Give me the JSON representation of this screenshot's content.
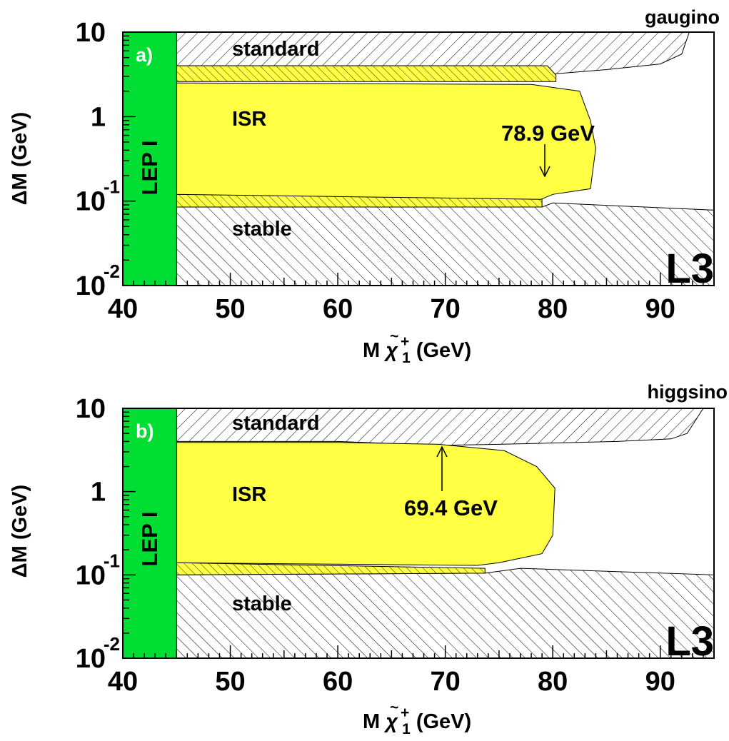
{
  "chart_data": [
    {
      "type": "area",
      "panel_label": "a)",
      "corner_label": "gaugino",
      "experiment_label": "L3",
      "xlabel": {
        "main": "M",
        "symbol": "χ",
        "tilde": "~",
        "sup": "+",
        "sub": "1",
        "unit": " (GeV)"
      },
      "ylabel": "ΔM (GeV)",
      "xlim": [
        40,
        95
      ],
      "ylim": [
        0.01,
        10
      ],
      "y_scale": "log",
      "x_tick_labels": [
        "40",
        "50",
        "60",
        "70",
        "80",
        "90"
      ],
      "y_tick_labels": [
        {
          "base": "10",
          "exp": ""
        },
        {
          "base": "1",
          "exp": ""
        },
        {
          "base": "10",
          "exp": "-1"
        },
        {
          "base": "10",
          "exp": "-2"
        }
      ],
      "region_labels": {
        "lep1": "LEP I",
        "standard": "standard",
        "isr": "ISR",
        "stable": "stable"
      },
      "annotation": {
        "text": "78.9 GeV",
        "x": 78.9
      },
      "colors": {
        "lep1": "#00dd33",
        "isr": "#ffff44",
        "hatch": "#000000"
      },
      "regions": {
        "lep1": [
          [
            40,
            0.01
          ],
          [
            45,
            0.01
          ],
          [
            45,
            10
          ],
          [
            40,
            10
          ]
        ],
        "standard": [
          [
            45,
            10
          ],
          [
            92.7,
            10
          ],
          [
            92.0,
            5.5
          ],
          [
            90.0,
            4.2
          ],
          [
            85.0,
            3.6
          ],
          [
            80.0,
            3.2
          ],
          [
            79.0,
            3.6
          ],
          [
            79.0,
            4.0
          ],
          [
            45,
            4.0
          ]
        ],
        "isr_outer": [
          [
            45,
            4.0
          ],
          [
            79.5,
            4.0
          ],
          [
            80.3,
            3.1
          ],
          [
            80.3,
            2.6
          ],
          [
            45,
            2.6
          ],
          [
            45,
            0.12
          ],
          [
            79.0,
            0.12
          ],
          [
            79.0,
            0.085
          ],
          [
            45,
            0.085
          ]
        ],
        "isr_inner": [
          [
            45,
            2.5
          ],
          [
            78,
            2.4
          ],
          [
            82.5,
            2.0
          ],
          [
            83.5,
            0.9
          ],
          [
            84.0,
            0.42
          ],
          [
            83.5,
            0.14
          ],
          [
            80.0,
            0.12
          ],
          [
            78.9,
            0.105
          ],
          [
            45,
            0.12
          ]
        ],
        "stable": [
          [
            45,
            0.085
          ],
          [
            79.0,
            0.085
          ],
          [
            80.0,
            0.095
          ],
          [
            95,
            0.078
          ],
          [
            95,
            0.01
          ],
          [
            45,
            0.01
          ]
        ]
      }
    },
    {
      "type": "area",
      "panel_label": "b)",
      "corner_label": "higgsino",
      "experiment_label": "L3",
      "xlabel": {
        "main": "M",
        "symbol": "χ",
        "tilde": "~",
        "sup": "+",
        "sub": "1",
        "unit": " (GeV)"
      },
      "ylabel": "ΔM (GeV)",
      "xlim": [
        40,
        95
      ],
      "ylim": [
        0.01,
        10
      ],
      "y_scale": "log",
      "x_tick_labels": [
        "40",
        "50",
        "60",
        "70",
        "80",
        "90"
      ],
      "y_tick_labels": [
        {
          "base": "10",
          "exp": ""
        },
        {
          "base": "1",
          "exp": ""
        },
        {
          "base": "10",
          "exp": "-1"
        },
        {
          "base": "10",
          "exp": "-2"
        }
      ],
      "region_labels": {
        "lep1": "LEP I",
        "standard": "standard",
        "isr": "ISR",
        "stable": "stable"
      },
      "annotation": {
        "text": "69.4 GeV",
        "x": 69.4
      },
      "colors": {
        "lep1": "#00dd33",
        "isr": "#ffff44",
        "hatch": "#000000"
      },
      "regions": {
        "lep1": [
          [
            40,
            0.01
          ],
          [
            45,
            0.01
          ],
          [
            45,
            10
          ],
          [
            40,
            10
          ]
        ],
        "standard": [
          [
            45,
            10
          ],
          [
            94.0,
            10
          ],
          [
            92.5,
            5.0
          ],
          [
            91.0,
            4.3
          ],
          [
            86.0,
            4.0
          ],
          [
            75.0,
            3.7
          ],
          [
            69.4,
            3.6
          ],
          [
            60.0,
            4.0
          ],
          [
            45,
            4.0
          ]
        ],
        "isr_outer": [
          [
            45,
            0.14
          ],
          [
            73.7,
            0.12
          ],
          [
            73.7,
            0.105
          ],
          [
            45,
            0.1
          ]
        ],
        "isr_inner": [
          [
            45,
            3.9
          ],
          [
            60.0,
            3.9
          ],
          [
            69.4,
            3.7
          ],
          [
            75.5,
            3.1
          ],
          [
            78.5,
            2.0
          ],
          [
            80.2,
            1.1
          ],
          [
            80.0,
            0.3
          ],
          [
            79.0,
            0.18
          ],
          [
            75.0,
            0.14
          ],
          [
            73.0,
            0.13
          ],
          [
            45,
            0.14
          ]
        ],
        "stable": [
          [
            45,
            0.1
          ],
          [
            73.7,
            0.105
          ],
          [
            77.0,
            0.12
          ],
          [
            95,
            0.1
          ],
          [
            95,
            0.01
          ],
          [
            45,
            0.01
          ]
        ]
      }
    }
  ]
}
